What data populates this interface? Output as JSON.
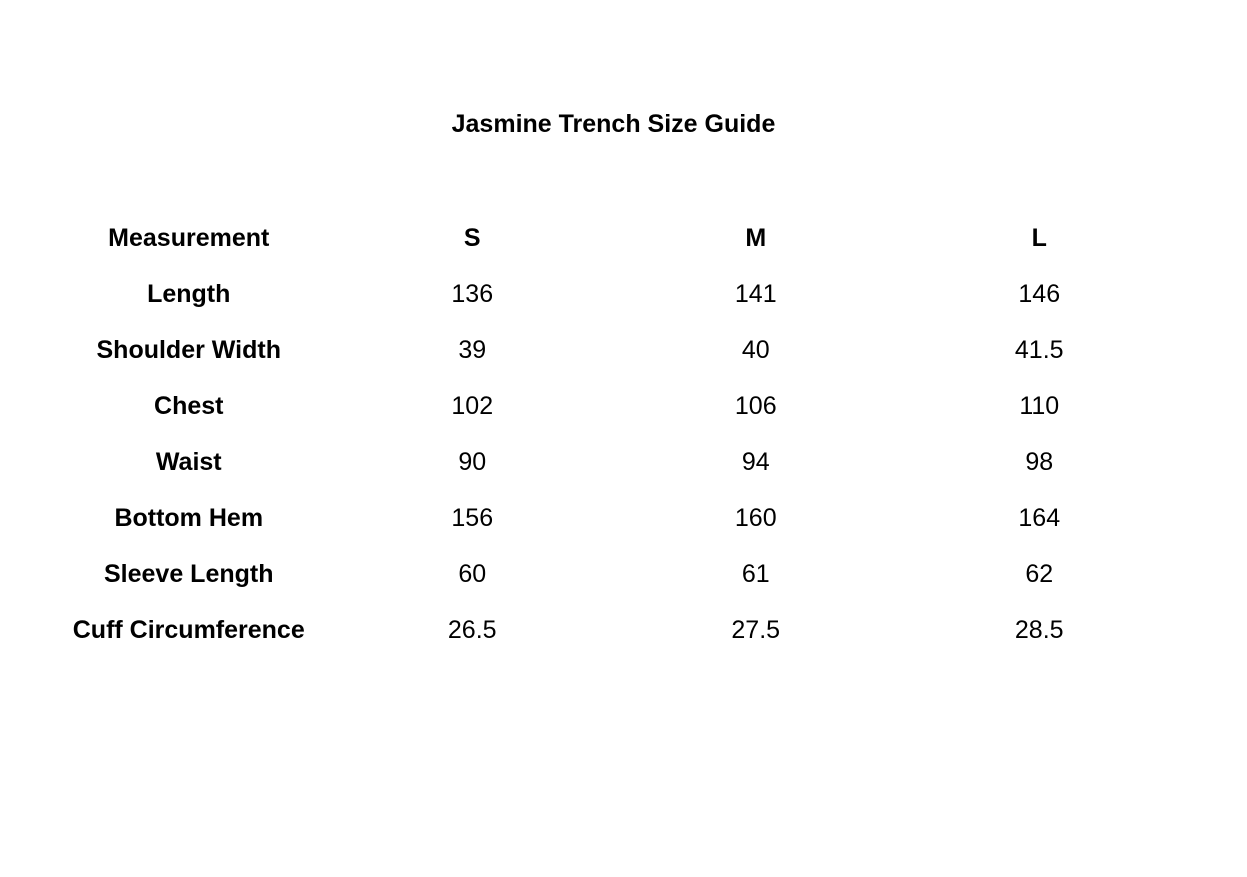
{
  "title": "Jasmine Trench Size Guide",
  "headers": [
    "Measurement",
    "S",
    "M",
    "L"
  ],
  "rows": [
    {
      "label": "Length",
      "values": [
        "136",
        "141",
        "146"
      ]
    },
    {
      "label": "Shoulder Width",
      "values": [
        "39",
        "40",
        "41.5"
      ]
    },
    {
      "label": "Chest",
      "values": [
        "102",
        "106",
        "110"
      ]
    },
    {
      "label": "Waist",
      "values": [
        "90",
        "94",
        "98"
      ]
    },
    {
      "label": "Bottom Hem",
      "values": [
        "156",
        "160",
        "164"
      ]
    },
    {
      "label": "Sleeve Length",
      "values": [
        "60",
        "61",
        "62"
      ]
    },
    {
      "label": "Cuff Circumference",
      "values": [
        "26.5",
        "27.5",
        "28.5"
      ]
    }
  ]
}
